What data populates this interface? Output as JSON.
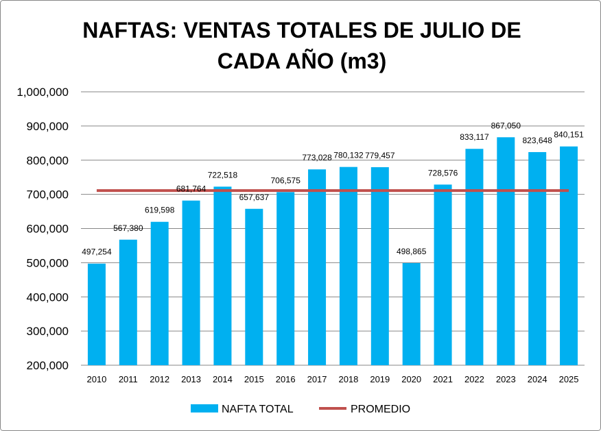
{
  "chart_data": {
    "type": "bar",
    "title_lines": [
      "NAFTAS: VENTAS TOTALES DE JULIO DE",
      "CADA AÑO (m3)"
    ],
    "categories": [
      "2010",
      "2011",
      "2012",
      "2013",
      "2014",
      "2015",
      "2016",
      "2017",
      "2018",
      "2019",
      "2020",
      "2021",
      "2022",
      "2023",
      "2024",
      "2025"
    ],
    "series": [
      {
        "name": "NAFTA TOTAL",
        "type": "bar",
        "color": "#00b0f0",
        "values": [
          497254,
          567380,
          619598,
          681764,
          722518,
          657637,
          706575,
          773028,
          780132,
          779457,
          498865,
          728576,
          833117,
          867050,
          823648,
          840151
        ],
        "labels": [
          "497,254",
          "567,380",
          "619,598",
          "681,764",
          "722,518",
          "657,637",
          "706,575",
          "773,028",
          "780,132",
          "779,457",
          "498,865",
          "728,576",
          "833,117",
          "867,050",
          "823,648",
          "840,151"
        ]
      },
      {
        "name": "PROMEDIO",
        "type": "line",
        "color": "#c0504d",
        "value": 711047
      }
    ],
    "ylim": [
      200000,
      1000000
    ],
    "yticks": [
      "200,000",
      "300,000",
      "400,000",
      "500,000",
      "600,000",
      "700,000",
      "800,000",
      "900,000",
      "1,000,000"
    ],
    "grid": true,
    "legend_position": "bottom"
  }
}
